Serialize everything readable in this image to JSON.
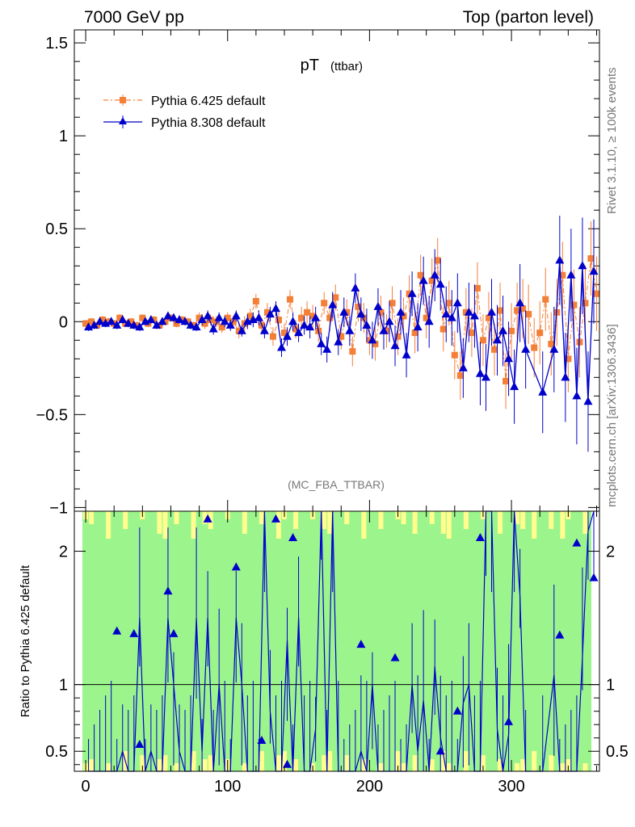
{
  "header": {
    "left": "7000 GeV pp",
    "right": "Top (parton level)"
  },
  "side": {
    "top": "Rivet 3.1.10, ≥ 100k events",
    "bottom": "mcplots.cern.ch [arXiv:1306.3436]"
  },
  "chart_data": [
    {
      "type": "scatter",
      "title": "pT",
      "title_sub": "(ttbar)",
      "watermark": "(MC_FBA_TTBAR)",
      "xlim": [
        -8,
        362
      ],
      "ylim": [
        -1.02,
        1.57
      ],
      "yticks": [
        -1,
        -0.5,
        0,
        0.5,
        1,
        1.5
      ],
      "ytick_labels": [
        "−1",
        "−0.5",
        "0",
        "0.5",
        "1",
        "1.5"
      ],
      "legend_position": "top-left",
      "series": [
        {
          "name": "Pythia 6.425 default",
          "color": "#f47f36",
          "marker": "square",
          "line": "dash-dot",
          "x": [
            0,
            4,
            8,
            12,
            16,
            20,
            24,
            28,
            32,
            36,
            40,
            44,
            48,
            52,
            56,
            60,
            64,
            68,
            72,
            76,
            80,
            84,
            88,
            92,
            96,
            100,
            104,
            108,
            112,
            116,
            120,
            124,
            128,
            132,
            136,
            140,
            144,
            148,
            152,
            156,
            160,
            164,
            168,
            172,
            176,
            180,
            184,
            188,
            192,
            196,
            200,
            204,
            208,
            212,
            216,
            220,
            224,
            228,
            232,
            236,
            240,
            244,
            248,
            252,
            256,
            260,
            264,
            268,
            272,
            276,
            280,
            284,
            288,
            292,
            296,
            300,
            304,
            308,
            312,
            316,
            320,
            324,
            328,
            332,
            336,
            340,
            344,
            348,
            352,
            356,
            360
          ],
          "y": [
            -0.01,
            0.0,
            -0.02,
            0.01,
            0.0,
            -0.01,
            0.02,
            -0.01,
            0.0,
            -0.02,
            0.02,
            -0.01,
            0.01,
            -0.02,
            0.0,
            0.02,
            -0.01,
            0.01,
            0.0,
            -0.02,
            0.02,
            -0.01,
            0.01,
            0.0,
            -0.03,
            0.02,
            0.0,
            -0.05,
            -0.01,
            0.03,
            0.11,
            -0.02,
            0.05,
            -0.08,
            0.01,
            -0.06,
            0.12,
            -0.04,
            0.02,
            0.05,
            0.03,
            -0.05,
            0.1,
            0.02,
            0.13,
            -0.08,
            0.05,
            -0.16,
            0.08,
            0.02,
            -0.1,
            -0.12,
            0.05,
            -0.05,
            0.1,
            -0.08,
            0.03,
            0.15,
            -0.06,
            0.25,
            0.02,
            0.22,
            0.33,
            -0.04,
            0.1,
            -0.18,
            -0.29,
            0.05,
            -0.06,
            0.18,
            -0.1,
            0.02,
            -0.15,
            0.06,
            -0.32,
            -0.05,
            0.06,
            0.07,
            0.04,
            -0.14,
            -0.06,
            0.12,
            -0.12,
            0.05,
            0.25,
            -0.2,
            0.09,
            -0.11,
            0.1,
            0.34,
            0.15
          ],
          "yerr": [
            0.02,
            0.02,
            0.02,
            0.02,
            0.02,
            0.02,
            0.02,
            0.02,
            0.02,
            0.02,
            0.02,
            0.02,
            0.02,
            0.02,
            0.02,
            0.02,
            0.02,
            0.02,
            0.02,
            0.02,
            0.03,
            0.03,
            0.03,
            0.03,
            0.03,
            0.03,
            0.03,
            0.04,
            0.04,
            0.04,
            0.04,
            0.04,
            0.05,
            0.05,
            0.05,
            0.05,
            0.05,
            0.05,
            0.06,
            0.06,
            0.06,
            0.06,
            0.06,
            0.07,
            0.07,
            0.07,
            0.07,
            0.08,
            0.08,
            0.08,
            0.08,
            0.09,
            0.09,
            0.09,
            0.09,
            0.1,
            0.1,
            0.1,
            0.11,
            0.11,
            0.11,
            0.12,
            0.12,
            0.12,
            0.12,
            0.13,
            0.13,
            0.13,
            0.13,
            0.14,
            0.14,
            0.14,
            0.14,
            0.15,
            0.15,
            0.15,
            0.15,
            0.16,
            0.16,
            0.16,
            0.17,
            0.17,
            0.17,
            0.18,
            0.18,
            0.18,
            0.19,
            0.19,
            0.2,
            0.2,
            0.2
          ]
        },
        {
          "name": "Pythia 8.308 default",
          "color": "#0000cc",
          "marker": "triangle",
          "line": "solid",
          "x": [
            2,
            6,
            10,
            14,
            18,
            22,
            26,
            30,
            34,
            38,
            42,
            46,
            50,
            54,
            58,
            62,
            66,
            70,
            74,
            78,
            82,
            86,
            90,
            94,
            98,
            102,
            106,
            110,
            114,
            118,
            122,
            126,
            130,
            134,
            138,
            142,
            146,
            150,
            154,
            158,
            162,
            166,
            170,
            174,
            178,
            182,
            186,
            190,
            194,
            198,
            202,
            206,
            210,
            214,
            218,
            222,
            226,
            230,
            234,
            238,
            242,
            246,
            250,
            254,
            258,
            262,
            266,
            270,
            274,
            278,
            282,
            286,
            290,
            294,
            298,
            302,
            306,
            310,
            322,
            330,
            334,
            338,
            342,
            346,
            350,
            354,
            358
          ],
          "y": [
            -0.03,
            -0.02,
            0.0,
            -0.01,
            0.0,
            -0.02,
            0.01,
            -0.01,
            -0.02,
            -0.03,
            0.0,
            0.01,
            -0.02,
            0.0,
            0.03,
            0.02,
            0.01,
            0.0,
            -0.02,
            -0.03,
            0.01,
            0.03,
            -0.04,
            0.02,
            0.0,
            -0.02,
            0.03,
            -0.05,
            0.0,
            0.01,
            0.02,
            -0.05,
            0.04,
            0.07,
            -0.14,
            -0.08,
            0.0,
            -0.06,
            -0.02,
            -0.03,
            0.02,
            -0.12,
            -0.15,
            0.09,
            -0.11,
            0.05,
            -0.05,
            0.18,
            0.04,
            -0.02,
            -0.1,
            0.08,
            -0.05,
            0.0,
            -0.13,
            0.05,
            -0.18,
            0.15,
            -0.03,
            0.22,
            0.0,
            0.25,
            0.2,
            0.04,
            0.02,
            0.1,
            -0.25,
            0.05,
            0.03,
            -0.28,
            -0.3,
            0.05,
            -0.1,
            -0.05,
            -0.2,
            -0.35,
            0.1,
            -0.15,
            -0.38,
            -0.15,
            0.33,
            -0.3,
            0.25,
            -0.4,
            0.3,
            -0.43,
            0.27
          ],
          "yerr": [
            0.02,
            0.02,
            0.02,
            0.02,
            0.02,
            0.02,
            0.02,
            0.02,
            0.02,
            0.02,
            0.02,
            0.02,
            0.02,
            0.02,
            0.02,
            0.02,
            0.02,
            0.02,
            0.02,
            0.02,
            0.03,
            0.03,
            0.03,
            0.03,
            0.03,
            0.03,
            0.03,
            0.03,
            0.04,
            0.04,
            0.04,
            0.04,
            0.04,
            0.04,
            0.05,
            0.05,
            0.05,
            0.05,
            0.05,
            0.06,
            0.06,
            0.06,
            0.07,
            0.07,
            0.07,
            0.08,
            0.08,
            0.08,
            0.09,
            0.09,
            0.1,
            0.1,
            0.1,
            0.11,
            0.11,
            0.12,
            0.12,
            0.12,
            0.13,
            0.13,
            0.14,
            0.14,
            0.14,
            0.15,
            0.15,
            0.16,
            0.16,
            0.16,
            0.17,
            0.17,
            0.18,
            0.18,
            0.19,
            0.19,
            0.2,
            0.2,
            0.21,
            0.21,
            0.22,
            0.23,
            0.24,
            0.24,
            0.25,
            0.26,
            0.26,
            0.27,
            0.28
          ]
        }
      ]
    },
    {
      "type": "scatter",
      "ylabel": "Ratio to Pythia 6.425 default",
      "xlim": [
        -8,
        362
      ],
      "ylim": [
        0.35,
        2.3
      ],
      "yticks": [
        0.5,
        1,
        2
      ],
      "ytick_labels": [
        "0.5",
        "1",
        "2"
      ],
      "xticks": [
        0,
        100,
        200,
        300
      ],
      "xtick_labels": [
        "0",
        "100",
        "200",
        "300"
      ],
      "reference_line": 1,
      "band_colors": {
        "inner": "#9cf58c",
        "outer": "#fffe8e"
      },
      "series": [
        {
          "name": "Pythia 8.308 default",
          "color": "#0000cc",
          "x": [
            22,
            34,
            38,
            58,
            62,
            86,
            106,
            124,
            134,
            142,
            146,
            194,
            218,
            250,
            262,
            278,
            298,
            334,
            346,
            358
          ],
          "y": [
            1.4,
            1.38,
            0.55,
            1.7,
            1.38,
            2.24,
            1.88,
            0.58,
            2.24,
            0.4,
            2.1,
            1.3,
            1.2,
            0.5,
            0.8,
            2.1,
            0.72,
            1.37,
            2.06,
            1.8
          ]
        }
      ]
    }
  ]
}
